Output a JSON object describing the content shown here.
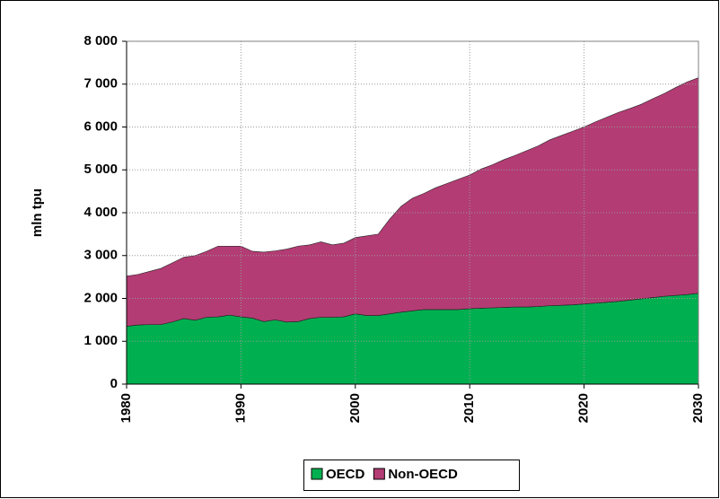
{
  "chart_data": {
    "type": "stacked_area",
    "y_label": "mln tpu",
    "x": [
      1980,
      1981,
      1982,
      1983,
      1984,
      1985,
      1986,
      1987,
      1988,
      1989,
      1990,
      1991,
      1992,
      1993,
      1994,
      1995,
      1996,
      1997,
      1998,
      1999,
      2000,
      2001,
      2002,
      2003,
      2004,
      2005,
      2006,
      2007,
      2008,
      2009,
      2010,
      2011,
      2012,
      2013,
      2014,
      2015,
      2016,
      2017,
      2018,
      2019,
      2020,
      2021,
      2022,
      2023,
      2024,
      2025,
      2026,
      2027,
      2028,
      2029,
      2030
    ],
    "series": [
      {
        "name": "OECD",
        "color": "#00b050",
        "values": [
          1350,
          1380,
          1390,
          1390,
          1450,
          1530,
          1490,
          1560,
          1570,
          1610,
          1570,
          1540,
          1460,
          1500,
          1450,
          1460,
          1530,
          1560,
          1560,
          1570,
          1640,
          1600,
          1600,
          1640,
          1680,
          1710,
          1740,
          1740,
          1740,
          1740,
          1760,
          1770,
          1780,
          1790,
          1800,
          1800,
          1810,
          1830,
          1840,
          1850,
          1870,
          1890,
          1910,
          1930,
          1960,
          1990,
          2020,
          2050,
          2070,
          2090,
          2120
        ]
      },
      {
        "name": "Non-OECD",
        "color": "#b33c74",
        "values": [
          1170,
          1180,
          1240,
          1310,
          1380,
          1430,
          1510,
          1540,
          1650,
          1610,
          1650,
          1560,
          1620,
          1610,
          1700,
          1760,
          1720,
          1760,
          1690,
          1720,
          1780,
          1860,
          1900,
          2210,
          2470,
          2630,
          2710,
          2840,
          2940,
          3040,
          3120,
          3250,
          3340,
          3450,
          3540,
          3650,
          3750,
          3870,
          3960,
          4050,
          4130,
          4230,
          4320,
          4410,
          4470,
          4540,
          4640,
          4730,
          4850,
          4960,
          5030
        ]
      }
    ],
    "xlim": [
      1980,
      2030
    ],
    "xticks": [
      1980,
      1990,
      2000,
      2010,
      2020,
      2030
    ],
    "ylim": [
      0,
      8000
    ],
    "yticks": [
      0,
      {
        "value": 1000,
        "label": "1 000"
      },
      {
        "value": 2000,
        "label": "2 000"
      },
      {
        "value": 3000,
        "label": "3 000"
      },
      {
        "value": 4000,
        "label": "4 000"
      },
      {
        "value": 5000,
        "label": "5 000"
      },
      {
        "value": 6000,
        "label": "6 000"
      },
      {
        "value": 7000,
        "label": "7 000"
      },
      {
        "value": 8000,
        "label": "8 000"
      }
    ],
    "grid": true,
    "legend": "bottom"
  }
}
